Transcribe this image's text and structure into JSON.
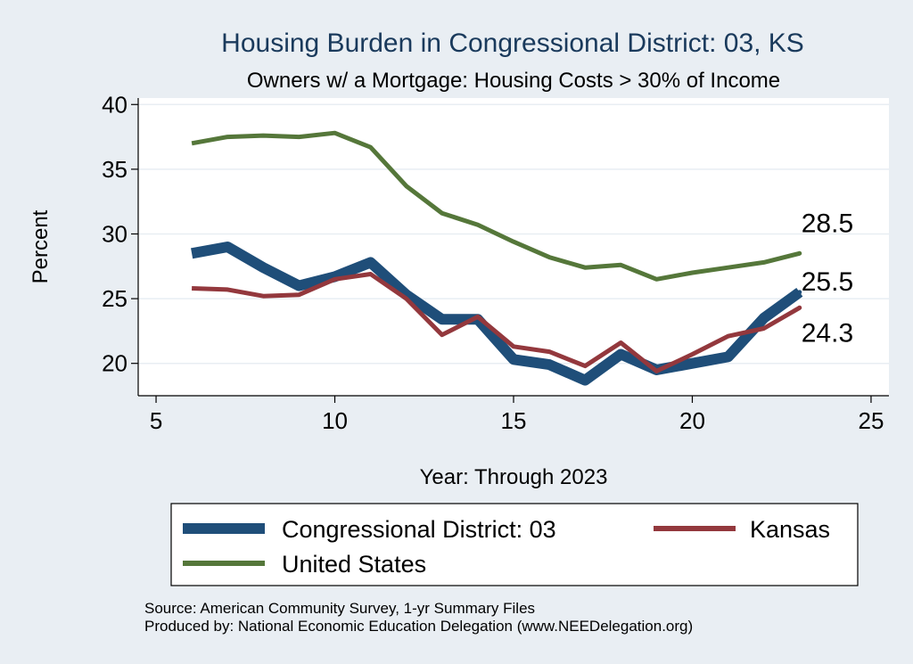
{
  "chart_data": {
    "type": "line",
    "title": "Housing Burden in Congressional District:  03, KS",
    "subtitle": "Owners w/ a Mortgage: Housing Costs > 30% of Income",
    "xlabel": "Year: Through 2023",
    "ylabel": "Percent",
    "xlim": [
      4.5,
      25.5
    ],
    "ylim": [
      17.5,
      40.5
    ],
    "xticks": [
      5,
      10,
      15,
      20,
      25
    ],
    "yticks": [
      20,
      25,
      30,
      35,
      40
    ],
    "grid": true,
    "series": [
      {
        "name": "Congressional District:  03",
        "color": "#1f4e79",
        "x": [
          6,
          7,
          8,
          9,
          10,
          11,
          12,
          13,
          14,
          15,
          16,
          17,
          18,
          19,
          20,
          21,
          22,
          23
        ],
        "values": [
          28.5,
          29.0,
          27.4,
          26.0,
          26.7,
          27.8,
          25.3,
          23.4,
          23.4,
          20.3,
          19.9,
          18.7,
          20.7,
          19.5,
          20.0,
          20.5,
          23.5,
          25.5
        ],
        "end_label": "25.5"
      },
      {
        "name": "Kansas",
        "color": "#93383d",
        "x": [
          6,
          7,
          8,
          9,
          10,
          11,
          12,
          13,
          14,
          15,
          16,
          17,
          18,
          19,
          20,
          21,
          22,
          23
        ],
        "values": [
          25.8,
          25.7,
          25.2,
          25.3,
          26.5,
          26.9,
          25.0,
          22.2,
          23.6,
          21.3,
          20.9,
          19.8,
          21.6,
          19.4,
          20.7,
          22.1,
          22.7,
          24.3
        ],
        "end_label": "24.3"
      },
      {
        "name": "United States",
        "color": "#55773a",
        "x": [
          6,
          7,
          8,
          9,
          10,
          11,
          12,
          13,
          14,
          15,
          16,
          17,
          18,
          19,
          20,
          21,
          22,
          23
        ],
        "values": [
          37.0,
          37.5,
          37.6,
          37.5,
          37.8,
          36.7,
          33.7,
          31.6,
          30.7,
          29.4,
          28.2,
          27.4,
          27.6,
          26.5,
          27.0,
          27.4,
          27.8,
          28.5
        ],
        "end_label": "28.5"
      }
    ],
    "legend": {
      "position": "bottom",
      "entries": [
        "Congressional District:  03",
        "Kansas",
        "United States"
      ]
    },
    "source_lines": [
      "Source: American Community Survey, 1-yr Summary Files",
      "Produced by: National Economic Education Delegation (www.NEEDelegation.org)"
    ]
  }
}
